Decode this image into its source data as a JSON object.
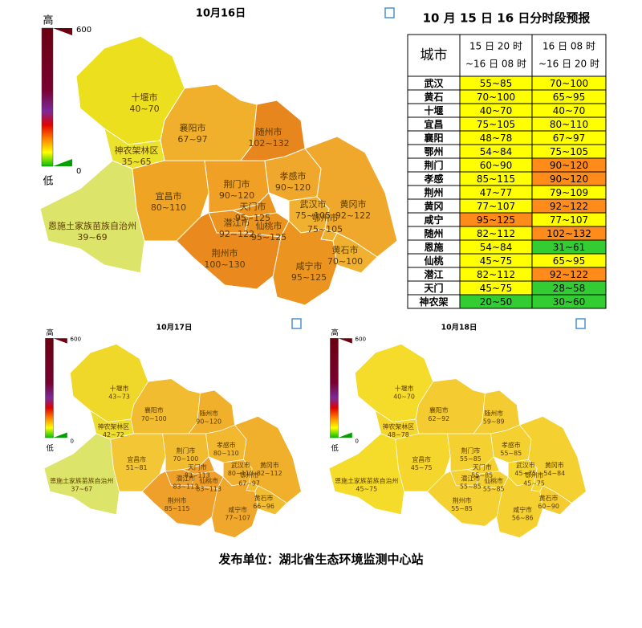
{
  "maps": [
    {
      "title": "10月16日",
      "legend": {
        "high": "高",
        "max": "600",
        "min": "0",
        "low": "低"
      },
      "regions": [
        {
          "name": "十堰市",
          "range": "40~70",
          "fill": "#ecdf1e"
        },
        {
          "name": "襄阳市",
          "range": "67~97",
          "fill": "#f0b02c"
        },
        {
          "name": "随州市",
          "range": "102~132",
          "fill": "#e8861e"
        },
        {
          "name": "神农架林区",
          "range": "35~65",
          "fill": "#eae22c"
        },
        {
          "name": "恩施土家族苗族自治州",
          "range": "39~69",
          "fill": "#dde46a"
        },
        {
          "name": "宜昌市",
          "range": "80~110",
          "fill": "#f0a424"
        },
        {
          "name": "荆门市",
          "range": "90~120",
          "fill": "#f0a024"
        },
        {
          "name": "孝感市",
          "range": "90~120",
          "fill": "#f0a82c"
        },
        {
          "name": "天门市",
          "range": "95~125",
          "fill": "#ec9420"
        },
        {
          "name": "潜江市",
          "range": "92~122",
          "fill": "#ec9420"
        },
        {
          "name": "仙桃市",
          "range": "95~125",
          "fill": "#ec9420"
        },
        {
          "name": "荆州市",
          "range": "100~130",
          "fill": "#ea8a1e"
        },
        {
          "name": "武汉市",
          "range": "75~105",
          "fill": "#f0b030"
        },
        {
          "name": "黄冈市",
          "range": "92~122",
          "fill": "#f0a82c"
        },
        {
          "name": "鄂州市",
          "range": "75~105",
          "fill": "#f0b030"
        },
        {
          "name": "黄石市",
          "range": "70~100",
          "fill": "#f0b030"
        },
        {
          "name": "咸宁市",
          "range": "95~125",
          "fill": "#ec9420"
        }
      ]
    },
    {
      "title": "10月17日",
      "legend": {
        "high": "高",
        "max": "600",
        "min": "0",
        "low": "低"
      },
      "regions": [
        {
          "name": "十堰市",
          "range": "43~73",
          "fill": "#f0d82a"
        },
        {
          "name": "襄阳市",
          "range": "70~100",
          "fill": "#f2bc30"
        },
        {
          "name": "随州市",
          "range": "90~120",
          "fill": "#f0b02c"
        },
        {
          "name": "神农架林区",
          "range": "42~72",
          "fill": "#ecdc30"
        },
        {
          "name": "恩施土家族苗族自治州",
          "range": "37~67",
          "fill": "#dde46a"
        },
        {
          "name": "宜昌市",
          "range": "51~81",
          "fill": "#f2c634"
        },
        {
          "name": "荆门市",
          "range": "70~100",
          "fill": "#f2bc30"
        },
        {
          "name": "孝感市",
          "range": "80~110",
          "fill": "#f2b830"
        },
        {
          "name": "天门市",
          "range": "83~113",
          "fill": "#eea02a"
        },
        {
          "name": "潜江市",
          "range": "83~113",
          "fill": "#eea02a"
        },
        {
          "name": "仙桃市",
          "range": "83~113",
          "fill": "#eea02a"
        },
        {
          "name": "荆州市",
          "range": "85~115",
          "fill": "#eea02a"
        },
        {
          "name": "武汉市",
          "range": "80~110",
          "fill": "#f0b030"
        },
        {
          "name": "黄冈市",
          "range": "82~112",
          "fill": "#f0b02c"
        },
        {
          "name": "鄂州市",
          "range": "67~97",
          "fill": "#f2bc30"
        },
        {
          "name": "黄石市",
          "range": "66~96",
          "fill": "#f2bc30"
        },
        {
          "name": "咸宁市",
          "range": "77~107",
          "fill": "#f0a82c"
        }
      ]
    },
    {
      "title": "10月18日",
      "legend": {
        "high": "高",
        "max": "600",
        "min": "0",
        "low": "低"
      },
      "regions": [
        {
          "name": "十堰市",
          "range": "40~70",
          "fill": "#f5dc2a"
        },
        {
          "name": "襄阳市",
          "range": "62~92",
          "fill": "#f4cc32"
        },
        {
          "name": "随州市",
          "range": "59~89",
          "fill": "#f4cc32"
        },
        {
          "name": "神农架林区",
          "range": "48~78",
          "fill": "#f5d62c"
        },
        {
          "name": "恩施土家族苗族自治州",
          "range": "45~75",
          "fill": "#f5dc2a"
        },
        {
          "name": "宜昌市",
          "range": "45~75",
          "fill": "#f5d62c"
        },
        {
          "name": "荆门市",
          "range": "55~85",
          "fill": "#f4d030"
        },
        {
          "name": "孝感市",
          "range": "55~85",
          "fill": "#f4d030"
        },
        {
          "name": "天门市",
          "range": "55~85",
          "fill": "#f4d030"
        },
        {
          "name": "潜江市",
          "range": "55~85",
          "fill": "#f4d030"
        },
        {
          "name": "仙桃市",
          "range": "55~85",
          "fill": "#f4d030"
        },
        {
          "name": "荆州市",
          "range": "55~85",
          "fill": "#f4d030"
        },
        {
          "name": "武汉市",
          "range": "45~75",
          "fill": "#f5d62c"
        },
        {
          "name": "黄冈市",
          "range": "54~84",
          "fill": "#f4d030"
        },
        {
          "name": "鄂州市",
          "range": "45~75",
          "fill": "#f5d62c"
        },
        {
          "name": "黄石市",
          "range": "60~90",
          "fill": "#f4cc32"
        },
        {
          "name": "咸宁市",
          "range": "56~86",
          "fill": "#f4d030"
        }
      ]
    }
  ],
  "table": {
    "title": "10 月 15 日 16 日分时段预报",
    "header": {
      "city": "城市",
      "periods": [
        [
          "15 日 20 时",
          "~16 日 08 时"
        ],
        [
          "16 日 08 时",
          "~16 日 20 时"
        ]
      ]
    },
    "rows": [
      {
        "city": "武汉",
        "cells": [
          {
            "text": "55~85",
            "color": "#ffff00"
          },
          {
            "text": "70~100",
            "color": "#ffff00"
          }
        ]
      },
      {
        "city": "黄石",
        "cells": [
          {
            "text": "70~100",
            "color": "#ffff00"
          },
          {
            "text": "65~95",
            "color": "#ffff00"
          }
        ]
      },
      {
        "city": "十堰",
        "cells": [
          {
            "text": "40~70",
            "color": "#ffff00"
          },
          {
            "text": "40~70",
            "color": "#ffff00"
          }
        ]
      },
      {
        "city": "宜昌",
        "cells": [
          {
            "text": "75~105",
            "color": "#ffff00"
          },
          {
            "text": "80~110",
            "color": "#ffff00"
          }
        ]
      },
      {
        "city": "襄阳",
        "cells": [
          {
            "text": "48~78",
            "color": "#ffff00"
          },
          {
            "text": "67~97",
            "color": "#ffff00"
          }
        ]
      },
      {
        "city": "鄂州",
        "cells": [
          {
            "text": "54~84",
            "color": "#ffff00"
          },
          {
            "text": "75~105",
            "color": "#ffff00"
          }
        ]
      },
      {
        "city": "荆门",
        "cells": [
          {
            "text": "60~90",
            "color": "#ffff00"
          },
          {
            "text": "90~120",
            "color": "#ff8c1a"
          }
        ]
      },
      {
        "city": "孝感",
        "cells": [
          {
            "text": "85~115",
            "color": "#ffff00"
          },
          {
            "text": "90~120",
            "color": "#ff8c1a"
          }
        ]
      },
      {
        "city": "荆州",
        "cells": [
          {
            "text": "47~77",
            "color": "#ffff00"
          },
          {
            "text": "79~109",
            "color": "#ffff00"
          }
        ]
      },
      {
        "city": "黄冈",
        "cells": [
          {
            "text": "77~107",
            "color": "#ffff00"
          },
          {
            "text": "92~122",
            "color": "#ff8c1a"
          }
        ]
      },
      {
        "city": "咸宁",
        "cells": [
          {
            "text": "95~125",
            "color": "#ff8c1a"
          },
          {
            "text": "77~107",
            "color": "#ffff00"
          }
        ]
      },
      {
        "city": "随州",
        "cells": [
          {
            "text": "82~112",
            "color": "#ffff00"
          },
          {
            "text": "102~132",
            "color": "#ff8c1a"
          }
        ]
      },
      {
        "city": "恩施",
        "cells": [
          {
            "text": "54~84",
            "color": "#ffff00"
          },
          {
            "text": "31~61",
            "color": "#33cc33"
          }
        ]
      },
      {
        "city": "仙桃",
        "cells": [
          {
            "text": "45~75",
            "color": "#ffff00"
          },
          {
            "text": "65~95",
            "color": "#ffff00"
          }
        ]
      },
      {
        "city": "潜江",
        "cells": [
          {
            "text": "82~112",
            "color": "#ffff00"
          },
          {
            "text": "92~122",
            "color": "#ff8c1a"
          }
        ]
      },
      {
        "city": "天门",
        "cells": [
          {
            "text": "45~75",
            "color": "#ffff00"
          },
          {
            "text": "28~58",
            "color": "#33cc33"
          }
        ]
      },
      {
        "city": "神农架",
        "cells": [
          {
            "text": "20~50",
            "color": "#33cc33"
          },
          {
            "text": "30~60",
            "color": "#33cc33"
          }
        ]
      }
    ]
  },
  "footer": "发布单位：湖北省生态环境监测中心站"
}
